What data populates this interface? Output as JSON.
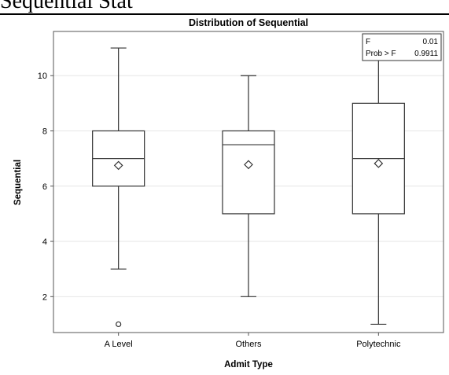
{
  "header": {
    "title": "Sequential Stat"
  },
  "chart_data": {
    "type": "box",
    "title": "Distribution of Sequential",
    "xlabel": "Admit Type",
    "ylabel": "Sequential",
    "ylim": [
      0.7,
      11.6
    ],
    "yticks": [
      2,
      4,
      6,
      8,
      10
    ],
    "grid": true,
    "categories": [
      "A Level",
      "Others",
      "Polytechnic"
    ],
    "boxes": [
      {
        "category": "A Level",
        "min": 3,
        "q1": 6,
        "median": 7,
        "q3": 8,
        "max": 11,
        "mean": 6.75,
        "outliers": [
          1
        ]
      },
      {
        "category": "Others",
        "min": 2,
        "q1": 5,
        "median": 7.5,
        "q3": 8,
        "max": 10,
        "mean": 6.78,
        "outliers": []
      },
      {
        "category": "Polytechnic",
        "min": 1,
        "q1": 5,
        "median": 7,
        "q3": 9,
        "max": 11,
        "mean": 6.82,
        "outliers": []
      }
    ],
    "stats": {
      "f_label": "F",
      "f_value": "0.01",
      "p_label": "Prob > F",
      "p_value": "0.9911"
    }
  }
}
